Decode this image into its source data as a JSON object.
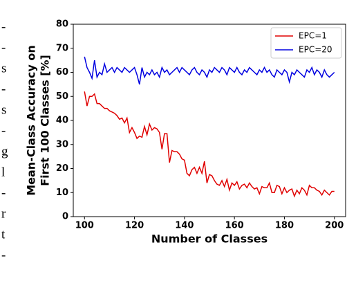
{
  "chart_data": {
    "type": "line",
    "xlabel": "Number of Classes",
    "ylabel": [
      "Mean-Class Accuracy on",
      "First 100 Classes [%]"
    ],
    "x": [
      100,
      101,
      102,
      103,
      104,
      105,
      106,
      107,
      108,
      109,
      110,
      111,
      112,
      113,
      114,
      115,
      116,
      117,
      118,
      119,
      120,
      121,
      122,
      123,
      124,
      125,
      126,
      127,
      128,
      129,
      130,
      131,
      132,
      133,
      134,
      135,
      136,
      137,
      138,
      139,
      140,
      141,
      142,
      143,
      144,
      145,
      146,
      147,
      148,
      149,
      150,
      151,
      152,
      153,
      154,
      155,
      156,
      157,
      158,
      159,
      160,
      161,
      162,
      163,
      164,
      165,
      166,
      167,
      168,
      169,
      170,
      171,
      172,
      173,
      174,
      175,
      176,
      177,
      178,
      179,
      180,
      181,
      182,
      183,
      184,
      185,
      186,
      187,
      188,
      189,
      190,
      191,
      192,
      193,
      194,
      195,
      196,
      197,
      198,
      199,
      200
    ],
    "series": [
      {
        "name": "EPC=1",
        "color": "#e00000",
        "values": [
          52,
          46,
          50,
          50,
          51,
          47,
          47,
          46,
          45,
          45,
          44,
          43.5,
          43,
          42,
          40.5,
          41,
          39,
          41,
          35,
          37,
          35,
          32.5,
          33.5,
          33,
          37.5,
          34,
          38.5,
          36,
          37,
          36.5,
          35,
          28,
          34.5,
          34.5,
          22.5,
          27.5,
          27,
          27,
          26,
          24,
          23.5,
          18,
          17,
          19.5,
          20.5,
          18,
          20.5,
          18,
          23,
          14,
          17.5,
          17,
          15,
          13.5,
          13,
          15,
          12.5,
          15.5,
          11,
          14,
          13,
          14.5,
          11.5,
          13,
          13.5,
          12,
          14,
          12.5,
          11.5,
          12,
          9.5,
          12.5,
          12,
          12,
          14,
          10,
          10,
          13,
          12.5,
          9.5,
          12,
          10,
          11,
          11.5,
          8.5,
          11,
          9.5,
          12,
          11,
          9,
          13,
          12,
          12,
          11,
          10.5,
          9,
          11,
          10,
          9,
          10.5,
          10.5
        ]
      },
      {
        "name": "EPC=20",
        "color": "#0000e0",
        "values": [
          66.5,
          62,
          60,
          57.5,
          65,
          58,
          60,
          59,
          63.5,
          60,
          61,
          62,
          60,
          62,
          61,
          60,
          62,
          61,
          60,
          61,
          62,
          59,
          55,
          62,
          58,
          60,
          59,
          61,
          59,
          60,
          58,
          62,
          60,
          61,
          59,
          60,
          61,
          62,
          60,
          62,
          61,
          60,
          59,
          61,
          62,
          60,
          59,
          61,
          60,
          58,
          61,
          60,
          62,
          61,
          60,
          62,
          61,
          59,
          62,
          61,
          60,
          62,
          60,
          59,
          61,
          60,
          62,
          61,
          60,
          59,
          61,
          60,
          62,
          60,
          61,
          59,
          58,
          61,
          60,
          59,
          61,
          60,
          56,
          60,
          59,
          61,
          60,
          59,
          58,
          61,
          60,
          62,
          59,
          61,
          60,
          58,
          61,
          59,
          58,
          59,
          60
        ]
      }
    ],
    "xlim": [
      95.5,
      204.5
    ],
    "xticks": [
      100,
      120,
      140,
      160,
      180,
      200
    ],
    "ylim": [
      0,
      80
    ],
    "yticks": [
      0,
      10,
      20,
      30,
      40,
      50,
      60,
      70,
      80
    ],
    "legend": "upper right"
  },
  "margin_fragments": [
    "-",
    "-",
    "s",
    "-",
    "s",
    "-",
    "g",
    "l",
    "-",
    "r",
    "t",
    "-"
  ]
}
